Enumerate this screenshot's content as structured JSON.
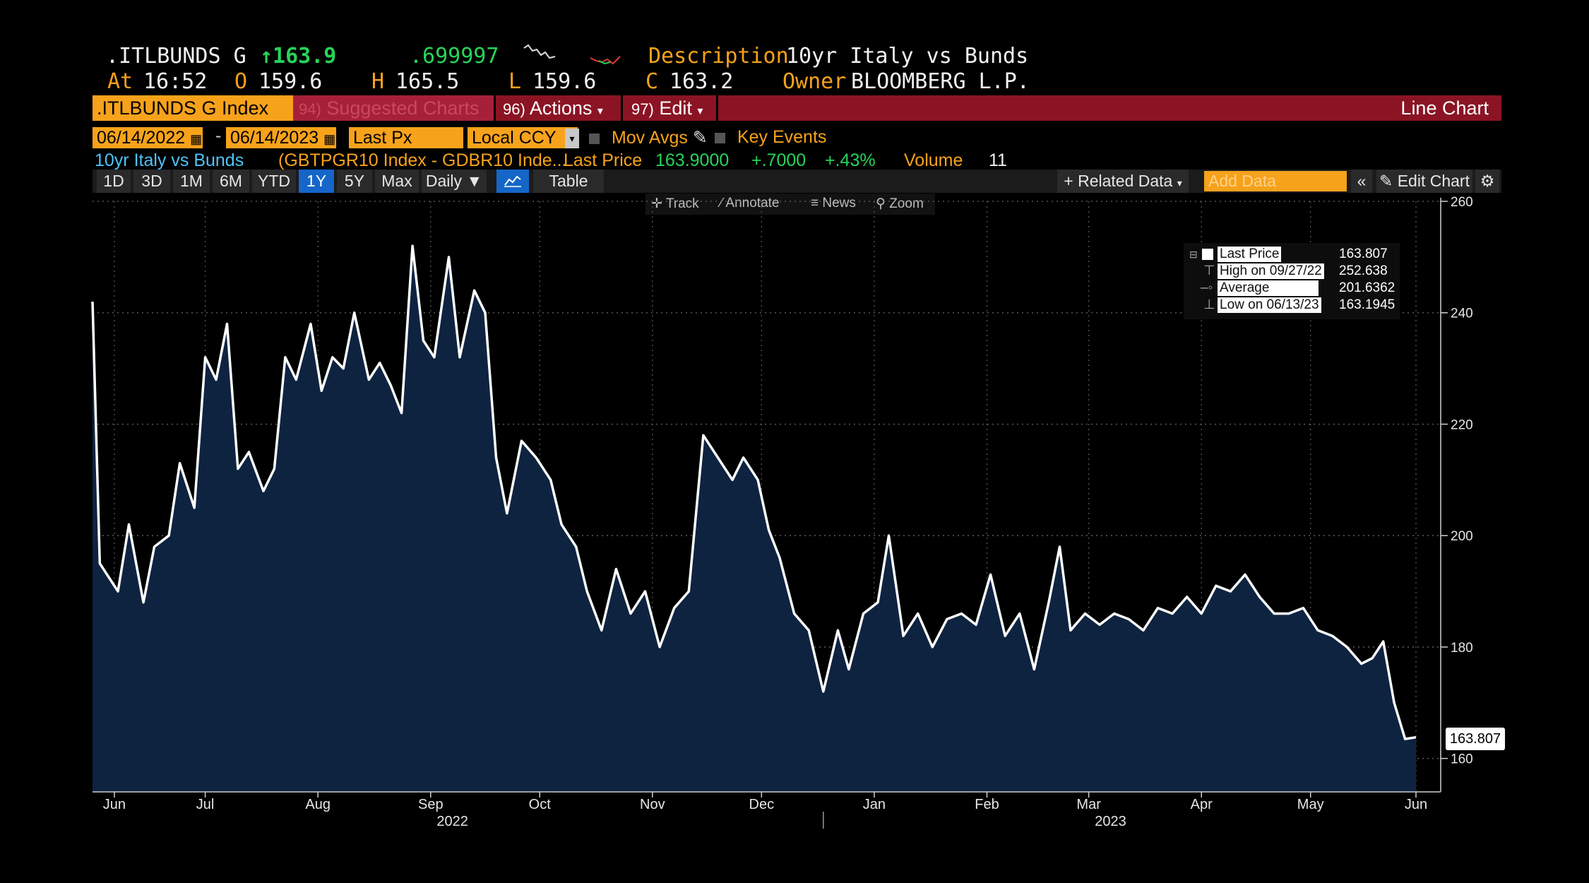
{
  "quote": {
    "ticker": ".ITLBUNDS G",
    "last": "↑163.9",
    "change": ".699997",
    "description_label": "Description",
    "description": "10yr Italy vs Bunds",
    "at_label": "At",
    "time": "16:52",
    "open_label": "O",
    "open": "159.6",
    "high_label": "H",
    "high": "165.5",
    "low_label": "L",
    "low": "159.6",
    "close_label": "C",
    "close": "163.2",
    "owner_label": "Owner",
    "owner": "BLOOMBERG L.P."
  },
  "menubar": {
    "security": ".ITLBUNDS G Index",
    "suggested_num": "94)",
    "suggested": "Suggested Charts",
    "actions_num": "96)",
    "actions": "Actions",
    "edit_num": "97)",
    "edit": "Edit",
    "view": "Line Chart"
  },
  "controls": {
    "start_date": "06/14/2022",
    "end_date": "06/14/2023",
    "separator": "-",
    "field": "Last Px",
    "currency": "Local CCY",
    "mov_avgs": "Mov Avgs",
    "key_events": "Key Events"
  },
  "series_info": {
    "name": "10yr Italy vs Bunds",
    "formula": "(GBTPGR10 Index - GDBR10 Inde...",
    "last_price_label": "Last Price",
    "last_price": "163.9000",
    "change": "+.7000",
    "change_pct": "+.43%",
    "volume_label": "Volume",
    "volume": "11"
  },
  "toolbar": {
    "ranges": [
      "1D",
      "3D",
      "1M",
      "6M",
      "YTD",
      "1Y",
      "5Y",
      "Max"
    ],
    "selected_range": "1Y",
    "frequency": "Daily ▼",
    "table": "Table",
    "related_data": "Related Data",
    "add_data_placeholder": "Add Data",
    "edit_chart": "Edit Chart"
  },
  "chart_tools": [
    "Track",
    "Annotate",
    "News",
    "Zoom"
  ],
  "legend": {
    "last_price_label": "Last Price",
    "last_price": "163.807",
    "high_label": "High on 09/27/22",
    "high": "252.638",
    "average_label": "Average",
    "average": "201.6362",
    "low_label": "Low on 06/13/23",
    "low": "163.1945"
  },
  "last_value_tag": "163.807",
  "colors": {
    "orange": "#f7a21b",
    "green": "#27d35a",
    "menubar_red": "#8b1424",
    "area_fill": "#0e2340",
    "line": "#ffffff",
    "selected_blue": "#1566c8"
  },
  "chart_data": {
    "type": "area",
    "y_ticks": [
      "260",
      "240",
      "220",
      "200",
      "180",
      "160"
    ],
    "ylim": [
      154,
      260
    ],
    "x_ticks": [
      "Jun",
      "Jul",
      "Aug",
      "Sep",
      "Oct",
      "Nov",
      "Dec",
      "Jan",
      "Feb",
      "Mar",
      "Apr",
      "May",
      "Jun"
    ],
    "x_tick_dates": [
      "2022-06-20",
      "2022-07-15",
      "2022-08-15",
      "2022-09-15",
      "2022-10-15",
      "2022-11-15",
      "2022-12-15",
      "2023-01-15",
      "2023-02-15",
      "2023-03-15",
      "2023-04-15",
      "2023-05-15",
      "2023-06-13"
    ],
    "years": [
      {
        "label": "2022",
        "center": "2022-09-21"
      },
      {
        "label": "2023",
        "center": "2023-03-21"
      }
    ],
    "grid": true,
    "legend_position": "top-right",
    "series": [
      {
        "x": [
          "2022-06-14",
          "2022-06-16",
          "2022-06-18",
          "2022-06-21",
          "2022-06-24",
          "2022-06-28",
          "2022-07-01",
          "2022-07-05",
          "2022-07-08",
          "2022-07-12",
          "2022-07-15",
          "2022-07-18",
          "2022-07-21",
          "2022-07-24",
          "2022-07-27",
          "2022-07-31",
          "2022-08-03",
          "2022-08-06",
          "2022-08-09",
          "2022-08-13",
          "2022-08-16",
          "2022-08-19",
          "2022-08-22",
          "2022-08-25",
          "2022-08-29",
          "2022-09-01",
          "2022-09-04",
          "2022-09-07",
          "2022-09-10",
          "2022-09-13",
          "2022-09-16",
          "2022-09-20",
          "2022-09-23",
          "2022-09-27",
          "2022-09-30",
          "2022-10-03",
          "2022-10-06",
          "2022-10-10",
          "2022-10-14",
          "2022-10-18",
          "2022-10-21",
          "2022-10-25",
          "2022-10-28",
          "2022-11-01",
          "2022-11-05",
          "2022-11-09",
          "2022-11-13",
          "2022-11-17",
          "2022-11-21",
          "2022-11-25",
          "2022-11-29",
          "2022-12-03",
          "2022-12-07",
          "2022-12-10",
          "2022-12-14",
          "2022-12-17",
          "2022-12-20",
          "2022-12-24",
          "2022-12-28",
          "2023-01-01",
          "2023-01-05",
          "2023-01-08",
          "2023-01-12",
          "2023-01-16",
          "2023-01-19",
          "2023-01-23",
          "2023-01-27",
          "2023-01-31",
          "2023-02-04",
          "2023-02-08",
          "2023-02-12",
          "2023-02-16",
          "2023-02-20",
          "2023-02-24",
          "2023-02-28",
          "2023-03-04",
          "2023-03-07",
          "2023-03-10",
          "2023-03-14",
          "2023-03-18",
          "2023-03-22",
          "2023-03-26",
          "2023-03-30",
          "2023-04-03",
          "2023-04-07",
          "2023-04-11",
          "2023-04-15",
          "2023-04-19",
          "2023-04-23",
          "2023-04-27",
          "2023-05-01",
          "2023-05-05",
          "2023-05-09",
          "2023-05-13",
          "2023-05-17",
          "2023-05-21",
          "2023-05-25",
          "2023-05-29",
          "2023-06-01",
          "2023-06-04",
          "2023-06-07",
          "2023-06-10",
          "2023-06-13"
        ],
        "values": [
          242,
          195,
          193,
          190,
          202,
          188,
          198,
          200,
          213,
          205,
          232,
          228,
          238,
          212,
          215,
          208,
          212,
          232,
          228,
          238,
          226,
          232,
          230,
          240,
          228,
          231,
          227,
          222,
          252,
          235,
          232,
          250,
          232,
          244,
          240,
          214,
          204,
          217,
          214,
          210,
          202,
          198,
          190,
          183,
          194,
          186,
          190,
          180,
          187,
          190,
          218,
          214,
          210,
          214,
          210,
          201,
          196,
          186,
          183,
          172,
          183,
          176,
          186,
          188,
          200,
          182,
          186,
          180,
          185,
          186,
          184,
          193,
          182,
          186,
          176,
          188,
          198,
          183,
          186,
          184,
          186,
          185,
          183,
          187,
          186,
          189,
          186,
          191,
          190,
          193,
          189,
          186,
          186,
          187,
          183,
          182,
          180,
          177,
          178,
          181,
          170,
          163.5,
          163.8
        ]
      }
    ]
  }
}
